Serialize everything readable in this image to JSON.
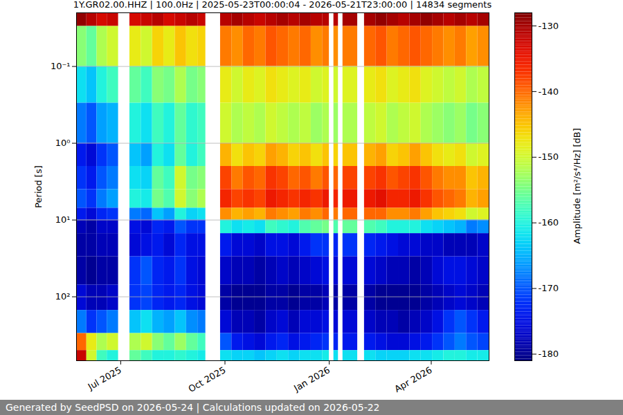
{
  "chart_data": {
    "type": "heatmap",
    "title": "1Y.GR02.00.HHZ | 100.0Hz | 2025-05-23T00:00:04 - 2026-05-21T23:00:00 | 14834 segments",
    "ylabel": "Period [s]",
    "caption": "Generated by SeedPSD on 2026-05-24 | Calculations updated on 2026-05-22",
    "log": "y",
    "grid": true,
    "xlim": [
      "2025-05-23",
      "2026-05-22"
    ],
    "xticks": [
      {
        "value": "2025-07-01",
        "label": "Jul 2025"
      },
      {
        "value": "2025-10-01",
        "label": "Oct 2025"
      },
      {
        "value": "2026-01-01",
        "label": "Jan 2026"
      },
      {
        "value": "2026-04-01",
        "label": "Apr 2026"
      }
    ],
    "ylim": [
      0.02,
      680
    ],
    "yticks": [
      {
        "value": 0.1,
        "label": "10⁻¹"
      },
      {
        "value": 1,
        "label": "10⁰"
      },
      {
        "value": 10,
        "label": "10¹"
      },
      {
        "value": 100,
        "label": "10²"
      }
    ],
    "x_bins": [
      "2025-05-23",
      "2025-06-01",
      "2025-06-10",
      "2025-06-19",
      "2025-06-29",
      "2025-07-09",
      "2025-07-19",
      "2025-07-29",
      "2025-08-08",
      "2025-08-18",
      "2025-08-28",
      "2025-09-07",
      "2025-09-14",
      "2025-09-27",
      "2025-10-07",
      "2025-10-17",
      "2025-10-27",
      "2025-11-06",
      "2025-11-16",
      "2025-11-26",
      "2025-12-06",
      "2025-12-16",
      "2025-12-26",
      "2026-01-01",
      "2026-01-05",
      "2026-01-09",
      "2026-01-13",
      "2026-01-26",
      "2026-02-01",
      "2026-02-11",
      "2026-02-21",
      "2026-03-03",
      "2026-03-13",
      "2026-03-23",
      "2026-04-02",
      "2026-04-12",
      "2026-04-22",
      "2026-05-02",
      "2026-05-12",
      "2026-05-22"
    ],
    "y_bins": [
      0.02,
      0.03,
      0.1,
      0.3,
      1,
      2,
      4,
      7,
      10,
      15,
      30,
      70,
      150,
      300,
      500,
      680
    ],
    "values": [
      [
        -129,
        -131,
        -133,
        -132,
        null,
        -133,
        -132,
        -131,
        -133,
        -132,
        -131,
        -132,
        null,
        -131,
        -130,
        -131,
        -132,
        -131,
        -130,
        -131,
        -130,
        -131,
        -131,
        null,
        -131,
        null,
        -130,
        null,
        -130,
        -129,
        -130,
        -131,
        -130,
        -129,
        -130,
        -131,
        -130,
        -131,
        -130
      ],
      [
        -154,
        -156,
        -152,
        -150,
        null,
        -148,
        -150,
        -146,
        -148,
        -145,
        -147,
        -146,
        null,
        -141,
        -142,
        -140,
        -141,
        -139,
        -140,
        -141,
        -140,
        -142,
        -141,
        null,
        -142,
        null,
        -141,
        null,
        -140,
        -139,
        -141,
        -140,
        -139,
        -140,
        -141,
        -142,
        -141,
        -143,
        -142
      ],
      [
        -162,
        -164,
        -160,
        -158,
        null,
        -156,
        -158,
        -154,
        -155,
        -152,
        -155,
        -154,
        null,
        -148,
        -150,
        -148,
        -149,
        -147,
        -148,
        -149,
        -148,
        -150,
        -149,
        null,
        -150,
        null,
        -149,
        null,
        -148,
        -147,
        -149,
        -148,
        -147,
        -149,
        -150,
        -151,
        -150,
        -152,
        -151
      ],
      [
        -168,
        -170,
        -166,
        -165,
        null,
        -160,
        -162,
        -158,
        -160,
        -156,
        -159,
        -158,
        null,
        -150,
        -152,
        -151,
        -152,
        -150,
        -151,
        -152,
        -151,
        -153,
        -152,
        null,
        -153,
        null,
        -152,
        null,
        -151,
        -150,
        -152,
        -151,
        -150,
        -152,
        -153,
        -154,
        -153,
        -155,
        -154
      ],
      [
        -174,
        -176,
        -172,
        -170,
        null,
        -164,
        -166,
        -160,
        -162,
        -156,
        -160,
        -158,
        null,
        -144,
        -147,
        -145,
        -146,
        -143,
        -144,
        -146,
        -145,
        -147,
        -145,
        null,
        -146,
        null,
        -145,
        null,
        -144,
        -143,
        -146,
        -145,
        -143,
        -145,
        -147,
        -148,
        -147,
        -150,
        -149
      ],
      [
        -172,
        -174,
        -170,
        -168,
        null,
        -162,
        -163,
        -156,
        -158,
        -150,
        -155,
        -154,
        null,
        -138,
        -141,
        -139,
        -140,
        -137,
        -138,
        -140,
        -139,
        -141,
        -139,
        null,
        -140,
        null,
        -138,
        null,
        -138,
        -137,
        -139,
        -138,
        -137,
        -139,
        -141,
        -142,
        -142,
        -145,
        -144
      ],
      [
        -170,
        -172,
        -168,
        -166,
        null,
        -160,
        -161,
        -155,
        -157,
        -150,
        -154,
        -152,
        null,
        -136,
        -138,
        -137,
        -138,
        -135,
        -136,
        -137,
        -136,
        -137,
        -135,
        null,
        -136,
        null,
        -135,
        null,
        -135,
        -134,
        -136,
        -136,
        -135,
        -137,
        -139,
        -140,
        -141,
        -144,
        -143
      ],
      [
        -174,
        -176,
        -173,
        -172,
        null,
        -168,
        -169,
        -164,
        -166,
        -160,
        -163,
        -162,
        null,
        -142,
        -144,
        -143,
        -144,
        -141,
        -142,
        -143,
        -141,
        -142,
        -140,
        null,
        -141,
        null,
        -140,
        null,
        -140,
        -140,
        -142,
        -142,
        -141,
        -143,
        -145,
        -146,
        -147,
        -150,
        -149
      ],
      [
        -178,
        -179,
        -177,
        -177,
        null,
        -175,
        -176,
        -173,
        -174,
        -170,
        -172,
        -172,
        null,
        -160,
        -162,
        -161,
        -162,
        -158,
        -159,
        -160,
        -157,
        -156,
        -155,
        null,
        -157,
        null,
        -156,
        null,
        -157,
        -158,
        -160,
        -160,
        -160,
        -162,
        -163,
        -164,
        -165,
        -168,
        -167
      ],
      [
        -179,
        -179,
        -178,
        -178,
        null,
        -176,
        -175,
        -174,
        -176,
        -173,
        -175,
        -175,
        null,
        -174,
        -176,
        -176,
        -177,
        -175,
        -175,
        -176,
        -174,
        -172,
        -172,
        null,
        -173,
        null,
        -172,
        null,
        -173,
        -174,
        -175,
        -176,
        -176,
        -177,
        -177,
        -178,
        -178,
        -178,
        -177
      ],
      [
        -179,
        -180,
        -179,
        -179,
        null,
        -172,
        -170,
        -173,
        -174,
        -172,
        -175,
        -176,
        null,
        -177,
        -178,
        -178,
        -179,
        -178,
        -177,
        -178,
        -177,
        -176,
        -175,
        null,
        -176,
        null,
        -176,
        null,
        -176,
        -177,
        -178,
        -178,
        -179,
        -178,
        -176,
        -175,
        -175,
        -176,
        -177
      ],
      [
        -176,
        -178,
        -178,
        -177,
        null,
        -172,
        -171,
        -173,
        -174,
        -173,
        -175,
        -176,
        null,
        -179,
        -180,
        -180,
        -180,
        -179,
        -179,
        -180,
        -179,
        -179,
        -178,
        null,
        -179,
        null,
        -179,
        null,
        -179,
        -180,
        -180,
        -180,
        -180,
        -179,
        -178,
        -177,
        -176,
        -177,
        -178
      ],
      [
        -168,
        -172,
        -170,
        -168,
        null,
        -164,
        -162,
        -165,
        -166,
        -164,
        -167,
        -168,
        null,
        -176,
        -178,
        -178,
        -179,
        -177,
        -176,
        -178,
        -176,
        -176,
        -175,
        null,
        -176,
        null,
        -176,
        null,
        -177,
        -178,
        -178,
        -179,
        -178,
        -177,
        -175,
        -172,
        -170,
        -172,
        -174
      ],
      [
        -140,
        -148,
        -152,
        -150,
        null,
        -152,
        -150,
        -154,
        -156,
        -153,
        -156,
        -158,
        null,
        -170,
        -174,
        -175,
        -176,
        -174,
        -173,
        -175,
        -174,
        -173,
        -172,
        null,
        -173,
        null,
        -174,
        null,
        -174,
        -175,
        -176,
        -176,
        -175,
        -174,
        -172,
        -170,
        -168,
        -170,
        -171
      ],
      [
        -132,
        -150,
        -158,
        -160,
        null,
        -156,
        -158,
        -160,
        -160,
        -159,
        -160,
        -161,
        null,
        -162,
        -163,
        -163,
        -164,
        -163,
        -162,
        -163,
        -162,
        -162,
        -161,
        null,
        -162,
        null,
        -162,
        null,
        -162,
        -163,
        -163,
        -163,
        -162,
        -162,
        -161,
        -160,
        -160,
        -161,
        -161
      ]
    ],
    "colorbar": {
      "label": "Amplitude [m²/s⁴/Hz] [dB]",
      "lim": [
        -181,
        -128
      ],
      "ticks": [
        -180,
        -170,
        -160,
        -150,
        -140,
        -130
      ]
    }
  }
}
